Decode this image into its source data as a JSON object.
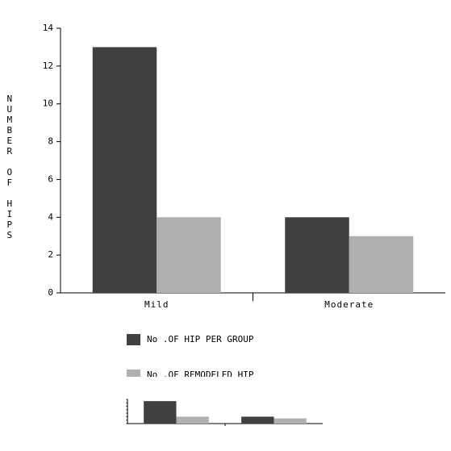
{
  "chart_data": {
    "type": "bar",
    "y_label": "NUMBER OF HIPS",
    "categories": [
      "Mild",
      "Moderate"
    ],
    "series": [
      {
        "name": "No .OF HIP PER GROUP",
        "color": "#404040",
        "values": [
          13,
          4
        ]
      },
      {
        "name": "No .OF REMODELED HIP",
        "color": "#b0b0b0",
        "values": [
          4,
          3
        ]
      }
    ],
    "ylim": [
      0,
      14
    ],
    "yticks": [
      0,
      2,
      4,
      6,
      8,
      10,
      12,
      14
    ]
  }
}
